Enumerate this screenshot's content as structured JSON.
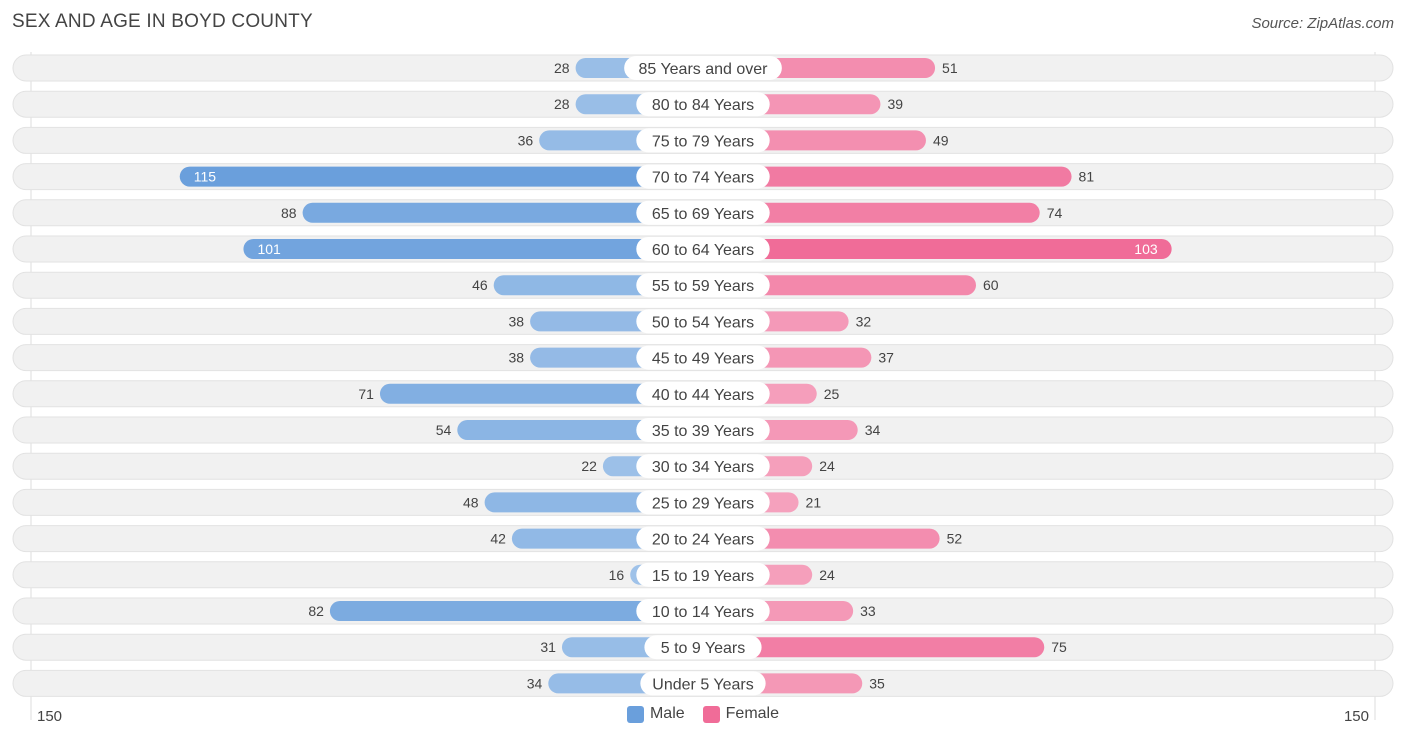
{
  "title": "SEX AND AGE IN BOYD COUNTY",
  "source": "Source: ZipAtlas.com",
  "colors": {
    "male_light": "#a8c8eb",
    "male_dark": "#6a9fdc",
    "female_light": "#f6aec6",
    "female_dark": "#f06c98",
    "row_bg": "#f1f1f1"
  },
  "legend": {
    "male": "Male",
    "female": "Female"
  },
  "chart_data": {
    "type": "bar",
    "orientation": "horizontal-diverging",
    "axis_min_label": "150",
    "axis_max_label": "150",
    "xlim": [
      -150,
      150
    ],
    "categories": [
      "85 Years and over",
      "80 to 84 Years",
      "75 to 79 Years",
      "70 to 74 Years",
      "65 to 69 Years",
      "60 to 64 Years",
      "55 to 59 Years",
      "50 to 54 Years",
      "45 to 49 Years",
      "40 to 44 Years",
      "35 to 39 Years",
      "30 to 34 Years",
      "25 to 29 Years",
      "20 to 24 Years",
      "15 to 19 Years",
      "10 to 14 Years",
      "5 to 9 Years",
      "Under 5 Years"
    ],
    "series": [
      {
        "name": "Male",
        "values": [
          28,
          28,
          36,
          115,
          88,
          101,
          46,
          38,
          38,
          71,
          54,
          22,
          48,
          42,
          16,
          82,
          31,
          34
        ]
      },
      {
        "name": "Female",
        "values": [
          51,
          39,
          49,
          81,
          74,
          103,
          60,
          32,
          37,
          25,
          34,
          24,
          21,
          52,
          24,
          33,
          75,
          35
        ]
      }
    ],
    "legend_position": "bottom-center"
  }
}
